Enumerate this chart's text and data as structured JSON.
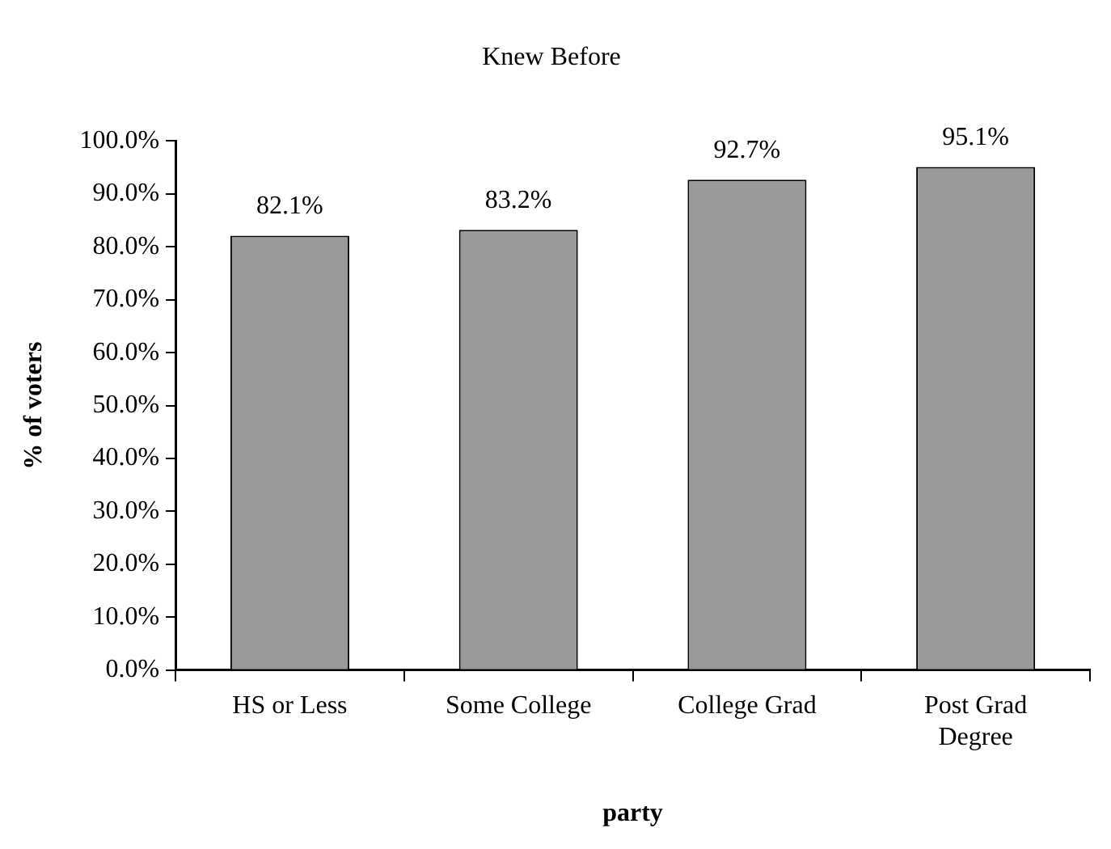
{
  "chart_data": {
    "type": "bar",
    "title": "Knew Before",
    "xlabel": "party",
    "ylabel": "% of voters",
    "categories": [
      "HS or Less",
      "Some College",
      "College Grad",
      "Post Grad Degree"
    ],
    "values": [
      82.1,
      83.2,
      92.7,
      95.1
    ],
    "value_labels": [
      "82.1%",
      "83.2%",
      "92.7%",
      "95.1%"
    ],
    "color": "#9a9a9a",
    "ylim": [
      0,
      100
    ],
    "yticks": [
      {
        "value": 0,
        "label": "0.0%"
      },
      {
        "value": 10,
        "label": "10.0%"
      },
      {
        "value": 20,
        "label": "20.0%"
      },
      {
        "value": 30,
        "label": "30.0%"
      },
      {
        "value": 40,
        "label": "40.0%"
      },
      {
        "value": 50,
        "label": "50.0%"
      },
      {
        "value": 60,
        "label": "60.0%"
      },
      {
        "value": 70,
        "label": "70.0%"
      },
      {
        "value": 80,
        "label": "80.0%"
      },
      {
        "value": 90,
        "label": "90.0%"
      },
      {
        "value": 100,
        "label": "100.0%"
      }
    ],
    "grid": false,
    "legend": false
  }
}
